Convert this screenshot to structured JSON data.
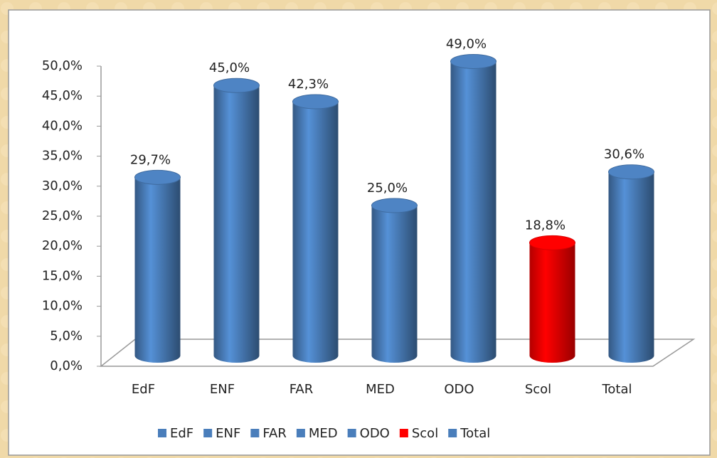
{
  "chart_data": {
    "type": "bar3d-cylinder",
    "categories": [
      "EdF",
      "ENF",
      "FAR",
      "MED",
      "ODO",
      "Scol",
      "Total"
    ],
    "values": [
      29.7,
      45.0,
      42.3,
      25.0,
      49.0,
      18.8,
      30.6
    ],
    "value_labels": [
      "29,7%",
      "45,0%",
      "42,3%",
      "25,0%",
      "49,0%",
      "18,8%",
      "30,6%"
    ],
    "colors": [
      "#4a7ebb",
      "#4a7ebb",
      "#4a7ebb",
      "#4a7ebb",
      "#4a7ebb",
      "#ff0000",
      "#4a7ebb"
    ],
    "ylim": [
      0,
      50
    ],
    "yticks": [
      {
        "value": 0,
        "label": "0,0%"
      },
      {
        "value": 5,
        "label": "5,0%"
      },
      {
        "value": 10,
        "label": "10,0%"
      },
      {
        "value": 15,
        "label": "15,0%"
      },
      {
        "value": 20,
        "label": "20,0%"
      },
      {
        "value": 25,
        "label": "25,0%"
      },
      {
        "value": 30,
        "label": "30,0%"
      },
      {
        "value": 35,
        "label": "35,0%"
      },
      {
        "value": 40,
        "label": "40,0%"
      },
      {
        "value": 45,
        "label": "45,0%"
      },
      {
        "value": 50,
        "label": "50,0%"
      }
    ],
    "legend": "bottom"
  }
}
